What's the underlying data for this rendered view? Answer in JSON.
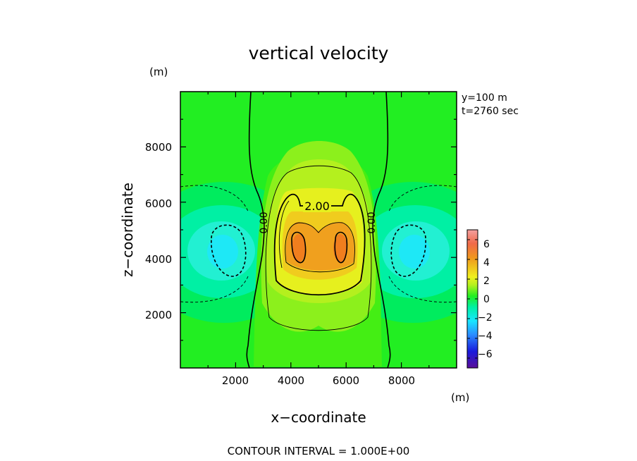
{
  "chart_data": {
    "type": "heatmap",
    "title": "vertical velocity",
    "xlabel": "x−coordinate",
    "ylabel": "z−coordinate",
    "x_unit": "(m)",
    "y_unit": "(m)",
    "xlim": [
      0,
      10000
    ],
    "ylim": [
      0,
      10000
    ],
    "xticks": [
      "2000",
      "4000",
      "6000",
      "8000"
    ],
    "yticks": [
      "2000",
      "4000",
      "6000",
      "8000"
    ],
    "info": [
      "y=100 m",
      "t=2760 sec"
    ],
    "colorbar": {
      "ticks": [
        "6",
        "4",
        "2",
        "0",
        "−2",
        "−4",
        "−6"
      ],
      "range": [
        -7,
        7
      ]
    },
    "contour_labels": [
      "2.00",
      "0.00",
      "0.00"
    ],
    "footer": "CONTOUR INTERVAL = 1.000E+00"
  }
}
